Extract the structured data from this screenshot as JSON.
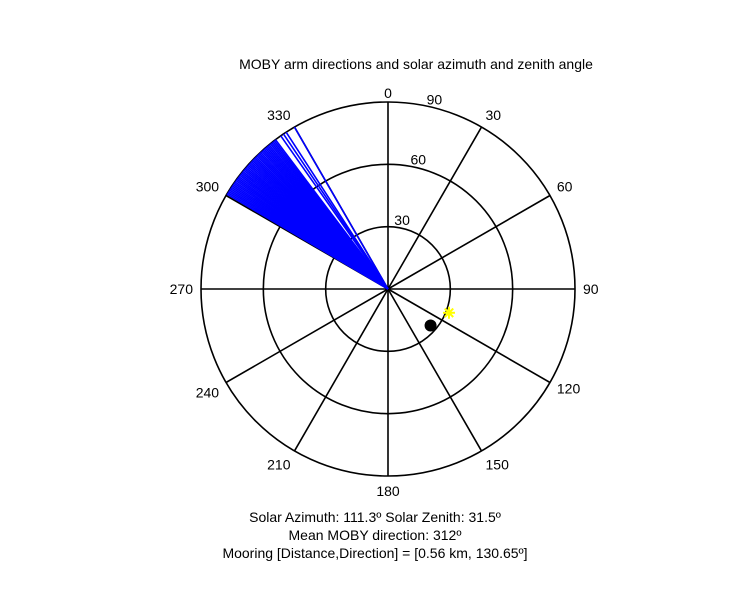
{
  "chart_data": {
    "type": "polar",
    "title": "MOBY arm directions and solar azimuth and zenith angle",
    "angle_ticks": [
      {
        "deg": 0,
        "label": "0"
      },
      {
        "deg": 30,
        "label": "30"
      },
      {
        "deg": 60,
        "label": "60"
      },
      {
        "deg": 90,
        "label": "90"
      },
      {
        "deg": 120,
        "label": "120"
      },
      {
        "deg": 150,
        "label": "150"
      },
      {
        "deg": 180,
        "label": "180"
      },
      {
        "deg": 210,
        "label": "210"
      },
      {
        "deg": 240,
        "label": "240"
      },
      {
        "deg": 270,
        "label": "270"
      },
      {
        "deg": 300,
        "label": "300"
      },
      {
        "deg": 330,
        "label": "330"
      }
    ],
    "radial_ticks": [
      {
        "r": 30,
        "label": "30"
      },
      {
        "r": 60,
        "label": "60"
      },
      {
        "r": 90,
        "label": "90"
      }
    ],
    "rmax": 90,
    "arm_directions": {
      "color": "#0000ff",
      "radius": 90,
      "angles_deg": [
        300.5,
        301.0,
        301.5,
        302.0,
        302.5,
        303.0,
        303.5,
        304.0,
        304.5,
        305.0,
        305.5,
        306.0,
        306.5,
        307.0,
        307.5,
        308.0,
        308.5,
        309.0,
        309.5,
        310.0,
        310.5,
        311.0,
        311.5,
        312.0,
        312.5,
        313.0,
        313.5,
        314.0,
        314.5,
        315.0,
        315.5,
        316.0,
        316.5,
        317.0,
        317.5,
        318.0,
        318.5,
        319.0,
        319.5,
        320.0,
        320.5,
        321.0,
        321.5,
        322.0,
        322.5,
        323.0,
        325.0,
        326.0,
        327.0,
        330.0
      ]
    },
    "sun": {
      "azimuth": 111.3,
      "zenith": 31.5,
      "color": "#ffff00",
      "marker": "star"
    },
    "mooring": {
      "direction": 130.65,
      "r": 27,
      "color": "#000000",
      "marker": "dot"
    }
  },
  "footer": {
    "line1": "Solar Azimuth: 111.3º   Solar Zenith: 31.5º",
    "line2": "Mean MOBY direction: 312º",
    "line3": "Mooring [Distance,Direction] = [0.56 km, 130.65º]"
  }
}
